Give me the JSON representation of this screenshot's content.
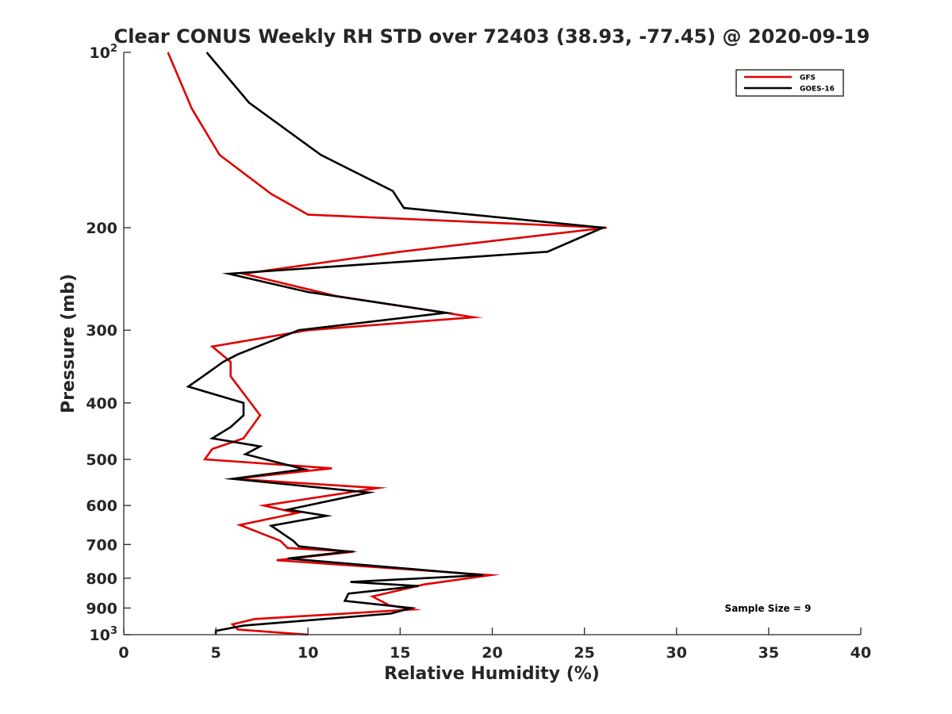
{
  "chart_data": {
    "type": "line",
    "title": "Clear CONUS Weekly RH STD over 72403 (38.93, -77.45) @ 2020-09-19",
    "xlabel": "Relative Humidity (%)",
    "ylabel": "Pressure (mb)",
    "xlim": [
      0,
      40
    ],
    "ylim": [
      100,
      1000
    ],
    "y_scale": "log",
    "y_reversed": true,
    "grid": false,
    "legend_position": "top-right",
    "x_ticks": [
      {
        "value": 0,
        "label": "0"
      },
      {
        "value": 5,
        "label": "5"
      },
      {
        "value": 10,
        "label": "10"
      },
      {
        "value": 15,
        "label": "15"
      },
      {
        "value": 20,
        "label": "20"
      },
      {
        "value": 25,
        "label": "25"
      },
      {
        "value": 30,
        "label": "30"
      },
      {
        "value": 35,
        "label": "35"
      },
      {
        "value": 40,
        "label": "40"
      }
    ],
    "y_ticks": [
      {
        "value": 100,
        "label": "10",
        "sup": "2"
      },
      {
        "value": 200,
        "label": "200",
        "sup": ""
      },
      {
        "value": 300,
        "label": "300",
        "sup": ""
      },
      {
        "value": 400,
        "label": "400",
        "sup": ""
      },
      {
        "value": 500,
        "label": "500",
        "sup": ""
      },
      {
        "value": 600,
        "label": "600",
        "sup": ""
      },
      {
        "value": 700,
        "label": "700",
        "sup": ""
      },
      {
        "value": 800,
        "label": "800",
        "sup": ""
      },
      {
        "value": 900,
        "label": "900",
        "sup": ""
      },
      {
        "value": 1000,
        "label": "10",
        "sup": "3"
      }
    ],
    "annotation": "Sample Size = 9",
    "series": [
      {
        "name": "GFS",
        "color": "#e00000",
        "points": [
          [
            2.4,
            100
          ],
          [
            3.7,
            125
          ],
          [
            5.2,
            150
          ],
          [
            8.0,
            175
          ],
          [
            10.0,
            190
          ],
          [
            26.2,
            200
          ],
          [
            15.0,
            220
          ],
          [
            6.5,
            240
          ],
          [
            11.5,
            262
          ],
          [
            19.0,
            285
          ],
          [
            10.0,
            300
          ],
          [
            4.8,
            320
          ],
          [
            5.8,
            340
          ],
          [
            5.8,
            360
          ],
          [
            7.4,
            420
          ],
          [
            6.5,
            460
          ],
          [
            4.8,
            480
          ],
          [
            4.4,
            500
          ],
          [
            11.3,
            518
          ],
          [
            6.0,
            540
          ],
          [
            13.8,
            560
          ],
          [
            7.6,
            600
          ],
          [
            9.4,
            618
          ],
          [
            6.3,
            648
          ],
          [
            8.5,
            690
          ],
          [
            8.9,
            710
          ],
          [
            12.5,
            720
          ],
          [
            8.3,
            745
          ],
          [
            19.9,
            790
          ],
          [
            16.3,
            820
          ],
          [
            13.5,
            860
          ],
          [
            14.4,
            890
          ],
          [
            15.7,
            905
          ],
          [
            7.1,
            940
          ],
          [
            5.9,
            960
          ],
          [
            6.2,
            980
          ],
          [
            10.0,
            1000
          ]
        ]
      },
      {
        "name": "GOES-16",
        "color": "#000000",
        "points": [
          [
            4.5,
            100
          ],
          [
            6.8,
            122
          ],
          [
            10.7,
            150
          ],
          [
            14.6,
            173
          ],
          [
            15.2,
            185
          ],
          [
            26.0,
            200
          ],
          [
            23.0,
            220
          ],
          [
            5.7,
            240
          ],
          [
            10.0,
            258
          ],
          [
            17.5,
            280
          ],
          [
            9.5,
            300
          ],
          [
            6.2,
            330
          ],
          [
            5.4,
            340
          ],
          [
            4.3,
            360
          ],
          [
            3.5,
            375
          ],
          [
            6.5,
            400
          ],
          [
            6.5,
            420
          ],
          [
            5.8,
            440
          ],
          [
            4.8,
            460
          ],
          [
            7.4,
            475
          ],
          [
            6.6,
            490
          ],
          [
            9.8,
            520
          ],
          [
            5.9,
            540
          ],
          [
            13.3,
            570
          ],
          [
            8.9,
            610
          ],
          [
            11.0,
            625
          ],
          [
            8.0,
            650
          ],
          [
            9.2,
            690
          ],
          [
            9.5,
            705
          ],
          [
            12.2,
            720
          ],
          [
            8.9,
            740
          ],
          [
            19.5,
            790
          ],
          [
            12.3,
            812
          ],
          [
            16.0,
            825
          ],
          [
            12.2,
            850
          ],
          [
            12.0,
            875
          ],
          [
            15.6,
            900
          ],
          [
            14.5,
            920
          ],
          [
            6.5,
            965
          ],
          [
            5.0,
            985
          ],
          [
            5.0,
            1000
          ]
        ]
      }
    ]
  }
}
